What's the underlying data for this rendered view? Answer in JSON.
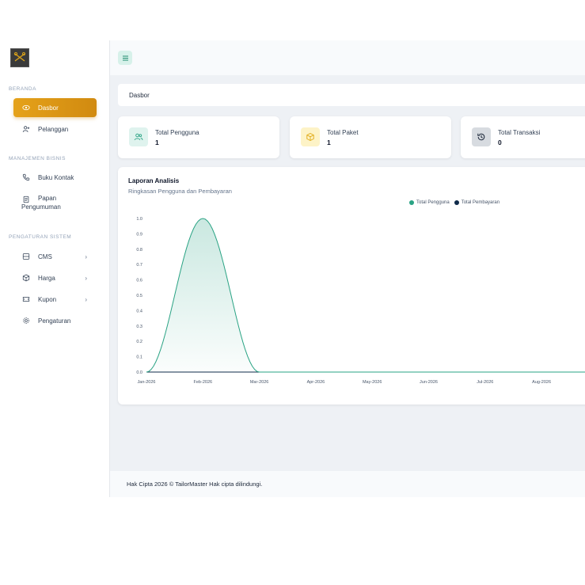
{
  "sidebar": {
    "sections": [
      {
        "label": "BERANDA"
      },
      {
        "label": "MANAJEMEN BISNIS"
      },
      {
        "label": "PENGATURAN SISTEM"
      }
    ],
    "items": [
      {
        "label": "Dasbor",
        "icon": "eye-icon",
        "active": true
      },
      {
        "label": "Pelanggan",
        "icon": "user-plus-icon"
      },
      {
        "label": "Buku Kontak",
        "icon": "phone-icon"
      },
      {
        "label": "Papan Pengumuman",
        "icon": "clipboard-icon"
      },
      {
        "label": "CMS",
        "icon": "layout-icon",
        "chevron": "›"
      },
      {
        "label": "Harga",
        "icon": "package-icon",
        "chevron": "›"
      },
      {
        "label": "Kupon",
        "icon": "ticket-icon",
        "chevron": "›"
      },
      {
        "label": "Pengaturan",
        "icon": "gear-icon"
      }
    ]
  },
  "breadcrumb": {
    "label": "Dasbor"
  },
  "stats": [
    {
      "title": "Total Pengguna",
      "value": "1",
      "icon": "users-icon",
      "color": "#dff3ee"
    },
    {
      "title": "Total Paket",
      "value": "1",
      "icon": "box-icon",
      "color": "#fdf3c7"
    },
    {
      "title": "Total Transaksi",
      "value": "0",
      "icon": "history-icon",
      "color": "#d7dbe0"
    }
  ],
  "analytics": {
    "title": "Laporan Analisis",
    "subtitle": "Ringkasan Pengguna dan Pembayaran"
  },
  "colors": {
    "accent": "#e5a21a",
    "series_users": "#2aa384",
    "series_payments": "#0f2a4a"
  },
  "chart_data": {
    "type": "area",
    "x": [
      "Jan-2026",
      "Feb-2026",
      "Mar-2026",
      "Apr-2026",
      "May-2026",
      "Jun-2026",
      "Jul-2026",
      "Aug-2026"
    ],
    "series": [
      {
        "name": "Total Pengguna",
        "values": [
          0,
          1,
          0,
          0,
          0,
          0,
          0,
          0
        ],
        "color": "#2aa384"
      },
      {
        "name": "Total Pembayaran",
        "values": [
          0,
          0,
          0,
          0,
          0,
          0,
          0,
          0
        ],
        "color": "#0f2a4a"
      }
    ],
    "yticks": [
      "0.0",
      "0.1",
      "0.2",
      "0.3",
      "0.4",
      "0.5",
      "0.6",
      "0.7",
      "0.8",
      "0.9",
      "1.0"
    ],
    "ylim": [
      0,
      1
    ],
    "legend": "top-center",
    "grid": false,
    "smooth": true
  },
  "footer": {
    "text": "Hak Cipta 2026 © TailorMaster Hak cipta dilindungi."
  }
}
